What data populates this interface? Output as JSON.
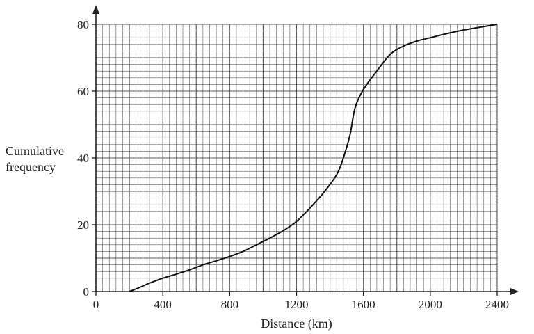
{
  "chart_data": {
    "type": "line",
    "title": "",
    "xlabel": "Distance (km)",
    "ylabel": [
      "Cumulative",
      "frequency"
    ],
    "xlim": [
      0,
      2400
    ],
    "ylim": [
      0,
      80
    ],
    "x_ticks": [
      0,
      400,
      800,
      1200,
      1600,
      2000,
      2400
    ],
    "y_ticks": [
      0,
      20,
      40,
      60,
      80
    ],
    "grid": true,
    "x_minor_step": 40,
    "y_minor_step": 2,
    "series": [
      {
        "points": [
          [
            200,
            0
          ],
          [
            260,
            1.2
          ],
          [
            320,
            2.5
          ],
          [
            400,
            4
          ],
          [
            480,
            5.2
          ],
          [
            560,
            6.5
          ],
          [
            640,
            8
          ],
          [
            720,
            9.2
          ],
          [
            800,
            10.5
          ],
          [
            880,
            12
          ],
          [
            960,
            14
          ],
          [
            1040,
            16
          ],
          [
            1120,
            18.2
          ],
          [
            1200,
            21
          ],
          [
            1280,
            25
          ],
          [
            1360,
            29.5
          ],
          [
            1440,
            35
          ],
          [
            1480,
            40
          ],
          [
            1520,
            47
          ],
          [
            1550,
            55
          ],
          [
            1600,
            60.5
          ],
          [
            1680,
            66
          ],
          [
            1760,
            71
          ],
          [
            1840,
            73.5
          ],
          [
            1920,
            75
          ],
          [
            2000,
            76
          ],
          [
            2080,
            77
          ],
          [
            2200,
            78.3
          ],
          [
            2400,
            80
          ]
        ]
      }
    ]
  }
}
